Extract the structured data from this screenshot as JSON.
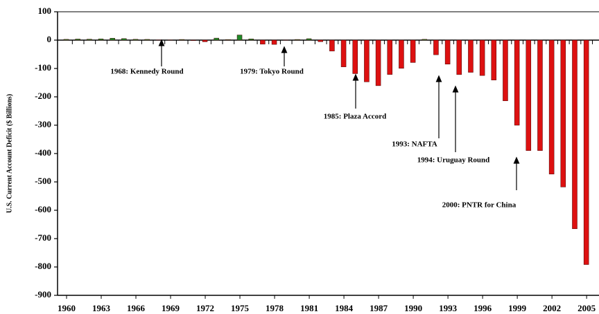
{
  "chart_data": {
    "type": "bar",
    "y_label": "U.S. Current Account Deficit ($ Billions)",
    "categories": [
      "1960",
      null,
      null,
      "1963",
      null,
      null,
      "1966",
      null,
      null,
      "1969",
      null,
      null,
      "1972",
      null,
      null,
      "1975",
      null,
      null,
      "1978",
      null,
      null,
      "1981",
      null,
      null,
      "1984",
      null,
      null,
      "1987",
      null,
      null,
      "1990",
      null,
      null,
      "1993",
      null,
      null,
      "1996",
      null,
      null,
      "1999",
      null,
      null,
      "2002",
      null,
      null,
      "2005"
    ],
    "values": [
      2.8,
      3.8,
      3.4,
      4.4,
      6.8,
      5.4,
      3.0,
      2.6,
      0.6,
      0.4,
      2.3,
      -1.4,
      -5.8,
      7.1,
      2.0,
      18.1,
      4.3,
      -14.3,
      -15.1,
      -0.3,
      2.3,
      5.0,
      -5.5,
      -38.7,
      -94.3,
      -118.2,
      -147.2,
      -160.7,
      -121.2,
      -99.5,
      -79.0,
      2.9,
      -51.6,
      -84.8,
      -121.6,
      -113.6,
      -124.8,
      -140.9,
      -214.1,
      -300.1,
      -389.5,
      -389.5,
      -472.4,
      -518.0,
      -665.3,
      -791.5
    ],
    "positive_color": "#1f8a2a",
    "negative_color": "#dd1111",
    "ylim": [
      -900,
      100
    ],
    "yticks": [
      -900,
      -800,
      -700,
      -600,
      -500,
      -400,
      -300,
      -200,
      -100,
      0,
      100
    ],
    "annotations": [
      "1968:  Kennedy Round",
      "1979:  Tokyo Round",
      "1985:  Plaza Accord",
      "1993:  NAFTA",
      "1994:  Uruguay Round",
      "2000:  PNTR for China"
    ]
  }
}
